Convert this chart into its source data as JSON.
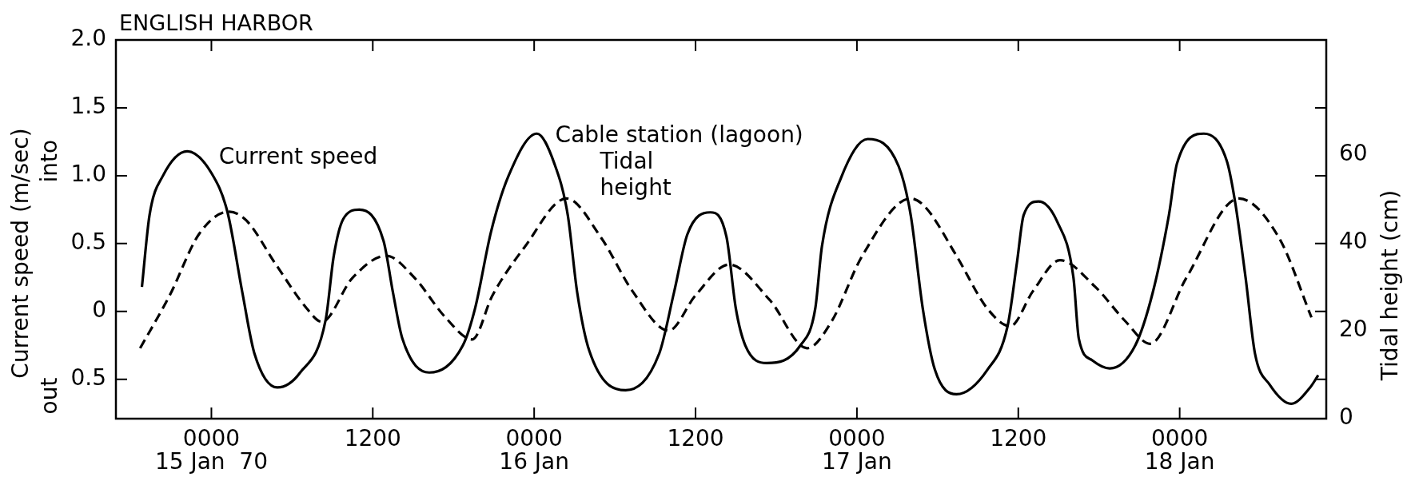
{
  "chart_data": {
    "type": "line",
    "title": "ENGLISH HARBOR",
    "ylabel": "Current speed (m/sec)",
    "y2label": "Tidal height (cm)",
    "xlim": [
      "1970-01-14T16:54",
      "1970-01-18T10:54"
    ],
    "xticks": [
      {
        "value": "1970-01-15T00:00",
        "label": "0000\n15 Jan  70"
      },
      {
        "value": "1970-01-15T12:00",
        "label": "1200"
      },
      {
        "value": "1970-01-16T00:00",
        "label": "0000\n16 Jan"
      },
      {
        "value": "1970-01-16T12:00",
        "label": "1200"
      },
      {
        "value": "1970-01-17T00:00",
        "label": "0000\n17 Jan"
      },
      {
        "value": "1970-01-17T12:00",
        "label": "1200"
      },
      {
        "value": "1970-01-18T00:00",
        "label": "0000\n18 Jan"
      }
    ],
    "ylim": [
      -0.79,
      2.0
    ],
    "yticks": [
      {
        "value": -0.5,
        "label": "0.5"
      },
      0,
      0.5,
      {
        "value": 1,
        "label": "1.0"
      },
      1.5,
      {
        "value": 2,
        "label": "2.0"
      }
    ],
    "y2lim": [
      0,
      86
    ],
    "y2ticks": [
      0,
      20,
      40,
      60
    ],
    "marker": "none",
    "series": [
      {
        "color": "#000000",
        "line_style": "solid",
        "x": [
          "1970-01-14T18:50",
          "1970-01-14T19:24",
          "1970-01-14T20:24",
          "1970-01-14T22:12",
          "1970-01-15T00:00",
          "1970-01-15T01:12",
          "1970-01-15T02:18",
          "1970-01-15T03:12",
          "1970-01-15T04:54",
          "1970-01-15T06:36",
          "1970-01-15T08:30",
          "1970-01-15T09:06",
          "1970-01-15T09:48",
          "1970-01-15T11:00",
          "1970-01-15T12:48",
          "1970-01-15T13:30",
          "1970-01-15T14:12",
          "1970-01-15T16:12",
          "1970-01-15T18:42",
          "1970-01-15T19:36",
          "1970-01-15T20:48",
          "1970-01-15T22:06",
          "1970-01-16T00:12",
          "1970-01-16T01:30",
          "1970-01-16T02:30",
          "1970-01-16T03:12",
          "1970-01-16T04:06",
          "1970-01-16T06:48",
          "1970-01-16T09:18",
          "1970-01-16T10:24",
          "1970-01-16T11:24",
          "1970-01-16T13:06",
          "1970-01-16T14:18",
          "1970-01-16T15:00",
          "1970-01-16T15:42",
          "1970-01-16T17:18",
          "1970-01-16T19:48",
          "1970-01-16T20:54",
          "1970-01-16T21:24",
          "1970-01-16T22:48",
          "1970-01-17T00:48",
          "1970-01-17T03:06",
          "1970-01-17T04:00",
          "1970-01-17T04:54",
          "1970-01-17T05:48",
          "1970-01-17T07:24",
          "1970-01-17T09:42",
          "1970-01-17T11:12",
          "1970-01-17T11:54",
          "1970-01-17T12:24",
          "1970-01-17T13:30",
          "1970-01-17T14:54",
          "1970-01-17T16:06",
          "1970-01-17T16:30",
          "1970-01-17T17:30",
          "1970-01-17T18:48",
          "1970-01-17T20:42",
          "1970-01-17T22:00",
          "1970-01-17T23:12",
          "1970-01-17T23:48",
          "1970-01-18T01:48",
          "1970-01-18T03:30",
          "1970-01-18T04:06",
          "1970-01-18T04:54",
          "1970-01-18T05:36",
          "1970-01-18T06:42",
          "1970-01-18T08:18",
          "1970-01-18T09:42",
          "1970-01-18T10:18"
        ],
        "values": [
          0.18,
          0.71,
          1.0,
          1.18,
          1.02,
          0.73,
          0.14,
          -0.31,
          -0.56,
          -0.45,
          -0.06,
          0.41,
          0.68,
          0.75,
          0.52,
          0.14,
          -0.2,
          -0.45,
          -0.25,
          0.02,
          0.59,
          1.0,
          1.31,
          1.09,
          0.71,
          0.14,
          -0.29,
          -0.58,
          -0.31,
          0.14,
          0.57,
          0.73,
          0.55,
          0.02,
          -0.25,
          -0.38,
          -0.25,
          0.02,
          0.48,
          0.98,
          1.27,
          1.07,
          0.71,
          0.02,
          -0.43,
          -0.61,
          -0.43,
          -0.11,
          0.36,
          0.71,
          0.81,
          0.66,
          0.25,
          -0.2,
          -0.36,
          -0.42,
          -0.25,
          0.14,
          0.71,
          1.09,
          1.31,
          1.11,
          0.82,
          0.25,
          -0.31,
          -0.54,
          -0.68,
          -0.56,
          -0.47
        ]
      },
      {
        "axis": "y2",
        "color": "#000000",
        "line_style": "dashed",
        "x": [
          "1970-01-14T18:42",
          "1970-01-14T20:54",
          "1970-01-14T23:06",
          "1970-01-15T01:18",
          "1970-01-15T02:36",
          "1970-01-15T04:48",
          "1970-01-15T07:06",
          "1970-01-15T08:12",
          "1970-01-15T10:30",
          "1970-01-15T13:00",
          "1970-01-15T15:06",
          "1970-01-15T17:24",
          "1970-01-15T19:24",
          "1970-01-15T20:54",
          "1970-01-15T23:18",
          "1970-01-16T02:24",
          "1970-01-16T05:00",
          "1970-01-16T07:18",
          "1970-01-16T10:00",
          "1970-01-16T12:00",
          "1970-01-16T14:30",
          "1970-01-16T17:30",
          "1970-01-16T20:18",
          "1970-01-16T22:06",
          "1970-01-17T00:24",
          "1970-01-17T04:00",
          "1970-01-17T05:06",
          "1970-01-17T07:24",
          "1970-01-17T09:42",
          "1970-01-17T11:24",
          "1970-01-17T13:06",
          "1970-01-17T15:06",
          "1970-01-17T17:42",
          "1970-01-17T20:00",
          "1970-01-17T21:48",
          "1970-01-18T00:30",
          "1970-01-18T04:24",
          "1970-01-18T07:24",
          "1970-01-18T09:48"
        ],
        "values": [
          16,
          28,
          42,
          47,
          45,
          35,
          25,
          22,
          32,
          37,
          32,
          23,
          18,
          28,
          39,
          50,
          41,
          29,
          20,
          28,
          35,
          27,
          16,
          22,
          37,
          50,
          48,
          37,
          25,
          21,
          29,
          36,
          30,
          22,
          17,
          32,
          50,
          41,
          23
        ]
      }
    ],
    "annotations": [
      "Current speed",
      "Cable station (lagoon)",
      "Tidal height",
      "into",
      "out"
    ]
  }
}
